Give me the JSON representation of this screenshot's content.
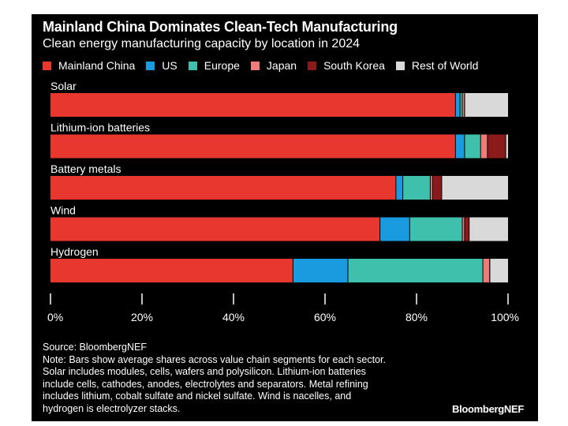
{
  "title": "Mainland China Dominates Clean-Tech Manufacturing",
  "subtitle": "Clean energy manufacturing capacity by location in 2024",
  "colors": {
    "background": "#000000",
    "text": "#ffffff",
    "axis": "#ffffff"
  },
  "chart_data": {
    "type": "bar",
    "orientation": "horizontal",
    "stacked": true,
    "title": "Mainland China Dominates Clean-Tech Manufacturing",
    "subtitle": "Clean energy manufacturing capacity by location in 2024",
    "categories": [
      "Solar",
      "Lithium-ion batteries",
      "Battery metals",
      "Wind",
      "Hydrogen"
    ],
    "series": [
      {
        "name": "Mainland China",
        "color": "#e8372f",
        "values": [
          88.5,
          88.5,
          75.5,
          72,
          53
        ]
      },
      {
        "name": "US",
        "color": "#1a9be0",
        "values": [
          1,
          2,
          1.5,
          6.5,
          12
        ]
      },
      {
        "name": "Europe",
        "color": "#3fc0ad",
        "values": [
          0.5,
          3.5,
          6,
          11.5,
          29.5
        ]
      },
      {
        "name": "Japan",
        "color": "#f07c79",
        "values": [
          0.5,
          1.5,
          0.5,
          0.5,
          1.5
        ]
      },
      {
        "name": "South Korea",
        "color": "#8b1a1a",
        "values": [
          0,
          4,
          2,
          1,
          0
        ]
      },
      {
        "name": "Rest of World",
        "color": "#d9d9d9",
        "values": [
          9.5,
          0.5,
          14.5,
          8.5,
          4
        ]
      }
    ],
    "xlim": [
      0,
      100
    ],
    "xticks": [
      "0%",
      "20%",
      "40%",
      "60%",
      "80%",
      "100%"
    ],
    "xtick_values": [
      0,
      20,
      40,
      60,
      80,
      100
    ],
    "legend_position": "top",
    "grid": false
  },
  "notes": {
    "source": "Source: BloombergNEF",
    "lines": [
      "Note: Bars show average shares across value chain segments for each sector.",
      "Solar includes modules, cells, wafers and polysilicon. Lithium-ion batteries",
      "include cells, cathodes, anodes, electrolytes and separators. Metal refining",
      "includes lithium, cobalt sulfate and nickel sulfate. Wind is nacelles, and",
      "hydrogen is electrolyzer stacks."
    ]
  },
  "brand": "BloombergNEF"
}
